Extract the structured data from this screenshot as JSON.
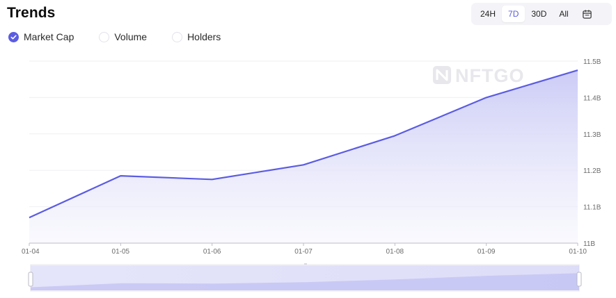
{
  "header": {
    "title": "Trends"
  },
  "range": {
    "options": [
      "24H",
      "7D",
      "30D",
      "All"
    ],
    "selected": "7D",
    "calendar_icon": "calendar-icon"
  },
  "toggles": [
    {
      "label": "Market Cap",
      "checked": true
    },
    {
      "label": "Volume",
      "checked": false
    },
    {
      "label": "Holders",
      "checked": false
    }
  ],
  "watermark": "NFTGO",
  "colors": {
    "accent": "#5b5ce2",
    "area_top": "#c9c9f6",
    "area_bottom": "#f6f6fd"
  },
  "chart_data": {
    "type": "area",
    "x": [
      "01-04",
      "01-05",
      "01-06",
      "01-07",
      "01-08",
      "01-09",
      "01-10"
    ],
    "series": [
      {
        "values": [
          11.07,
          11.185,
          11.175,
          11.215,
          11.295,
          11.4,
          11.475
        ]
      }
    ],
    "y_ticks": [
      "11B",
      "11.1B",
      "11.2B",
      "11.3B",
      "11.4B",
      "11.5B"
    ],
    "ylim": [
      11.0,
      11.5
    ],
    "grid": true,
    "y_axis_position": "right"
  }
}
